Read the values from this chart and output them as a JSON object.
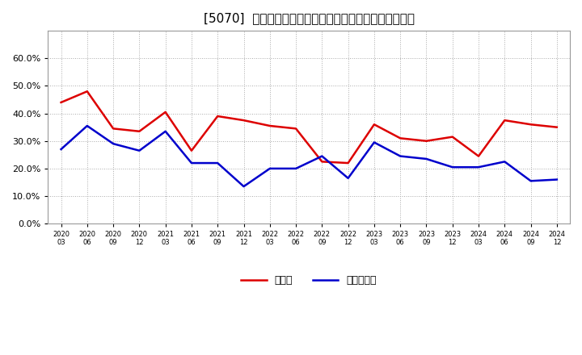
{
  "title": "[5070]  現顔金、有利子負債の総資産に対する比率の推移",
  "x_labels": [
    "2020/03",
    "2020/06",
    "2020/09",
    "2020/12",
    "2021/03",
    "2021/06",
    "2021/09",
    "2021/12",
    "2022/03",
    "2022/06",
    "2022/09",
    "2022/12",
    "2023/03",
    "2023/06",
    "2023/09",
    "2023/12",
    "2024/03",
    "2024/06",
    "2024/09",
    "2024/12"
  ],
  "genkin": [
    0.44,
    0.48,
    0.345,
    0.335,
    0.405,
    0.265,
    0.39,
    0.375,
    0.355,
    0.345,
    0.225,
    0.22,
    0.36,
    0.31,
    0.3,
    0.315,
    0.245,
    0.375,
    0.36,
    0.35
  ],
  "yuri": [
    0.27,
    0.355,
    0.29,
    0.265,
    0.335,
    0.22,
    0.22,
    0.135,
    0.2,
    0.2,
    0.245,
    0.165,
    0.295,
    0.245,
    0.235,
    0.205,
    0.205,
    0.225,
    0.155,
    0.16
  ],
  "genkin_color": "#dd0000",
  "yuri_color": "#0000cc",
  "background_color": "#ffffff",
  "grid_color": "#aaaaaa",
  "ylim": [
    0.0,
    0.7
  ],
  "yticks": [
    0.0,
    0.1,
    0.2,
    0.3,
    0.4,
    0.5,
    0.6
  ],
  "legend_genkin": "現顔金",
  "legend_yuri": "有利子負債",
  "title_fontsize": 11,
  "line_width": 1.8
}
